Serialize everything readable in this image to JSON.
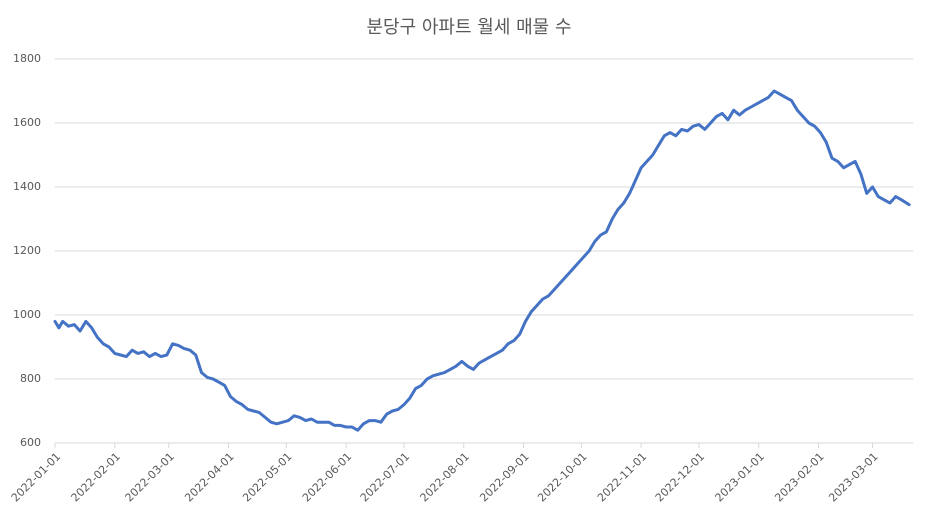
{
  "chart_data": {
    "type": "line",
    "title": "분당구 아파트 월세 매물 수",
    "color": "#4472c4",
    "grid": true,
    "x": [
      "2022-01-01",
      "2022-01-03",
      "2022-01-05",
      "2022-01-08",
      "2022-01-11",
      "2022-01-14",
      "2022-01-17",
      "2022-01-20",
      "2022-01-23",
      "2022-01-26",
      "2022-01-29",
      "2022-02-01",
      "2022-02-04",
      "2022-02-07",
      "2022-02-10",
      "2022-02-13",
      "2022-02-16",
      "2022-02-19",
      "2022-02-22",
      "2022-02-25",
      "2022-02-28",
      "2022-03-03",
      "2022-03-06",
      "2022-03-09",
      "2022-03-12",
      "2022-03-15",
      "2022-03-18",
      "2022-03-21",
      "2022-03-24",
      "2022-03-27",
      "2022-03-30",
      "2022-04-02",
      "2022-04-05",
      "2022-04-08",
      "2022-04-11",
      "2022-04-14",
      "2022-04-17",
      "2022-04-20",
      "2022-04-23",
      "2022-04-26",
      "2022-04-29",
      "2022-05-02",
      "2022-05-05",
      "2022-05-08",
      "2022-05-11",
      "2022-05-14",
      "2022-05-17",
      "2022-05-20",
      "2022-05-23",
      "2022-05-26",
      "2022-05-29",
      "2022-06-01",
      "2022-06-04",
      "2022-06-07",
      "2022-06-10",
      "2022-06-13",
      "2022-06-16",
      "2022-06-19",
      "2022-06-22",
      "2022-06-25",
      "2022-06-28",
      "2022-07-01",
      "2022-07-04",
      "2022-07-07",
      "2022-07-10",
      "2022-07-13",
      "2022-07-16",
      "2022-07-19",
      "2022-07-22",
      "2022-07-25",
      "2022-07-28",
      "2022-07-31",
      "2022-08-03",
      "2022-08-06",
      "2022-08-09",
      "2022-08-12",
      "2022-08-15",
      "2022-08-18",
      "2022-08-21",
      "2022-08-24",
      "2022-08-27",
      "2022-08-30",
      "2022-09-02",
      "2022-09-05",
      "2022-09-08",
      "2022-09-11",
      "2022-09-14",
      "2022-09-17",
      "2022-09-20",
      "2022-09-23",
      "2022-09-26",
      "2022-09-29",
      "2022-10-02",
      "2022-10-05",
      "2022-10-08",
      "2022-10-11",
      "2022-10-14",
      "2022-10-17",
      "2022-10-20",
      "2022-10-23",
      "2022-10-26",
      "2022-10-29",
      "2022-11-01",
      "2022-11-04",
      "2022-11-07",
      "2022-11-10",
      "2022-11-13",
      "2022-11-16",
      "2022-11-19",
      "2022-11-22",
      "2022-11-25",
      "2022-11-28",
      "2022-12-01",
      "2022-12-04",
      "2022-12-07",
      "2022-12-10",
      "2022-12-13",
      "2022-12-16",
      "2022-12-19",
      "2022-12-22",
      "2022-12-25",
      "2022-12-28",
      "2022-12-31",
      "2023-01-03",
      "2023-01-06",
      "2023-01-09",
      "2023-01-12",
      "2023-01-15",
      "2023-01-18",
      "2023-01-21",
      "2023-01-24",
      "2023-01-27",
      "2023-01-30",
      "2023-02-02",
      "2023-02-05",
      "2023-02-08",
      "2023-02-11",
      "2023-02-14",
      "2023-02-17",
      "2023-02-20",
      "2023-02-23",
      "2023-02-26",
      "2023-03-01",
      "2023-03-04",
      "2023-03-07",
      "2023-03-10",
      "2023-03-13",
      "2023-03-16",
      "2023-03-20"
    ],
    "values": [
      980,
      960,
      980,
      965,
      970,
      950,
      980,
      960,
      930,
      910,
      900,
      880,
      875,
      870,
      890,
      880,
      885,
      870,
      880,
      870,
      875,
      910,
      905,
      895,
      890,
      875,
      820,
      805,
      800,
      790,
      780,
      745,
      730,
      720,
      705,
      700,
      695,
      680,
      665,
      660,
      665,
      670,
      685,
      680,
      670,
      675,
      665,
      665,
      665,
      655,
      655,
      650,
      650,
      640,
      660,
      670,
      670,
      665,
      690,
      700,
      705,
      720,
      740,
      770,
      780,
      800,
      810,
      815,
      820,
      830,
      840,
      855,
      840,
      830,
      850,
      860,
      870,
      880,
      890,
      910,
      920,
      940,
      980,
      1010,
      1030,
      1050,
      1060,
      1080,
      1100,
      1120,
      1140,
      1160,
      1180,
      1200,
      1230,
      1250,
      1260,
      1300,
      1330,
      1350,
      1380,
      1420,
      1460,
      1480,
      1500,
      1530,
      1560,
      1570,
      1560,
      1580,
      1575,
      1590,
      1595,
      1580,
      1600,
      1620,
      1630,
      1610,
      1640,
      1625,
      1640,
      1650,
      1660,
      1670,
      1680,
      1700,
      1690,
      1680,
      1670,
      1640,
      1620,
      1600,
      1590,
      1570,
      1540,
      1490,
      1480,
      1460,
      1470,
      1480,
      1440,
      1380,
      1400,
      1370,
      1360,
      1350,
      1370,
      1360,
      1345
    ],
    "xlim": [
      "2022-01-01",
      "2023-03-22"
    ],
    "xticks": [
      "2022-01-01",
      "2022-02-01",
      "2022-03-01",
      "2022-04-01",
      "2022-05-01",
      "2022-06-01",
      "2022-07-01",
      "2022-08-01",
      "2022-09-01",
      "2022-10-01",
      "2022-11-01",
      "2022-12-01",
      "2023-01-01",
      "2023-02-01",
      "2023-03-01"
    ],
    "ylim": [
      600,
      1800
    ],
    "yticks": [
      600,
      800,
      1000,
      1200,
      1400,
      1600,
      1800
    ]
  }
}
